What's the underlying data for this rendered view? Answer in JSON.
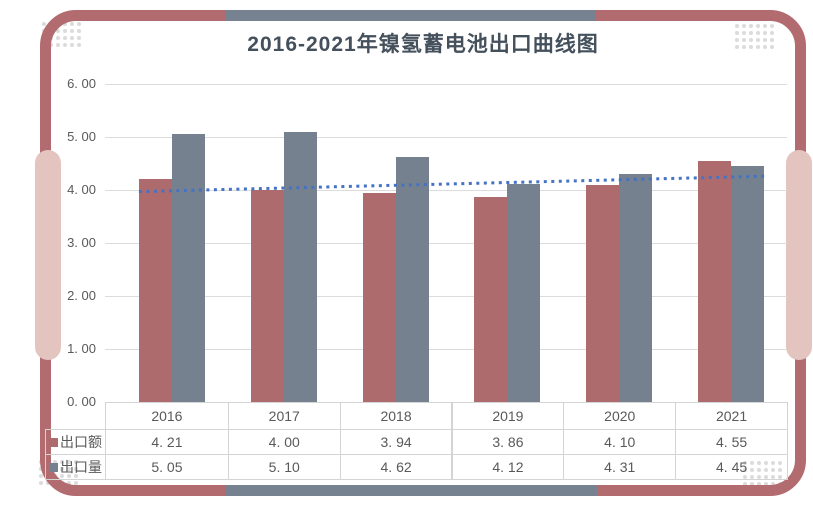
{
  "title": "2016-2021年镍氢蓄电池出口曲线图",
  "colors": {
    "frame-red": "#b26b6f",
    "frame-blue": "#76828f",
    "pill": "#e3c4bf",
    "bar-red": "#ae6b6e",
    "bar-blue": "#75818f",
    "trend": "#4472c4"
  },
  "chart_data": {
    "type": "bar",
    "title": "2016-2021年镍氢蓄电池出口曲线图",
    "categories": [
      "2016",
      "2017",
      "2018",
      "2019",
      "2020",
      "2021"
    ],
    "series": [
      {
        "name": "出口额",
        "color": "#ae6b6e",
        "values": [
          4.21,
          4.0,
          3.94,
          3.86,
          4.1,
          4.55
        ]
      },
      {
        "name": "出口量",
        "color": "#75818f",
        "values": [
          5.05,
          5.1,
          4.62,
          4.12,
          4.31,
          4.45
        ]
      }
    ],
    "trendline": {
      "color": "#4472c4",
      "style": "dotted",
      "start": 3.97,
      "end": 4.26
    },
    "ylim": [
      0,
      6
    ],
    "ytick_step": 1,
    "ytick_labels": [
      "0. 00",
      "1. 00",
      "2. 00",
      "3. 00",
      "4. 00",
      "5. 00",
      "6. 00"
    ],
    "grid": true,
    "legend_position": "table-left",
    "table_values": [
      [
        "4. 21",
        "4. 00",
        "3. 94",
        "3. 86",
        "4. 10",
        "4. 55"
      ],
      [
        "5. 05",
        "5. 10",
        "4. 62",
        "4. 12",
        "4. 31",
        "4. 45"
      ]
    ]
  }
}
